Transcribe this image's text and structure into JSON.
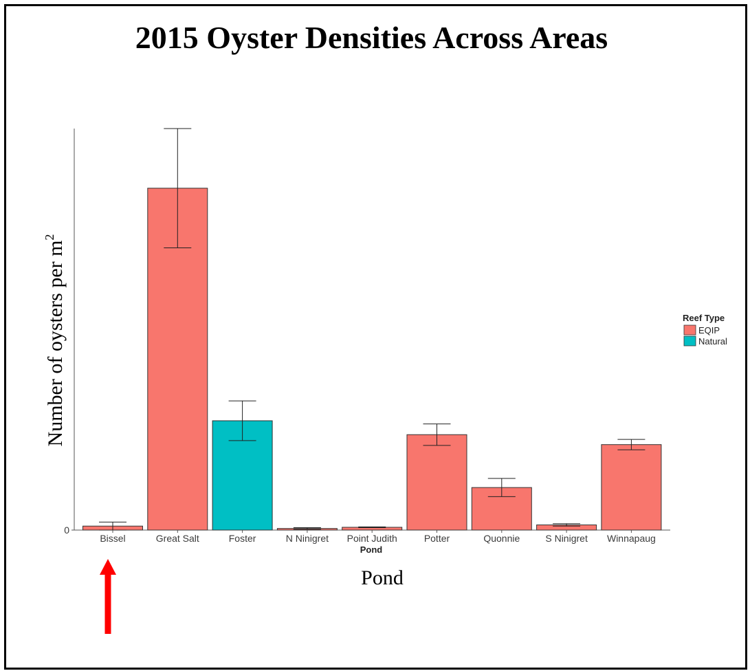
{
  "slide": {
    "title": "2015 Oyster Densities Across Areas"
  },
  "chart_data": {
    "type": "bar",
    "categories": [
      "Bissel",
      "Great Salt",
      "Foster",
      "N Ninigret",
      "Point Judith",
      "Potter",
      "Quonnie",
      "S Ninigret",
      "Winnapaug"
    ],
    "values": [
      1.0,
      86.0,
      27.5,
      0.4,
      0.7,
      24.0,
      10.7,
      1.3,
      21.5
    ],
    "error_low": [
      0.0,
      71.0,
      22.5,
      0.2,
      0.6,
      21.3,
      8.4,
      1.0,
      20.2
    ],
    "error_high": [
      2.0,
      101.0,
      32.5,
      0.6,
      0.8,
      26.7,
      13.0,
      1.6,
      22.8
    ],
    "reef_type": [
      "EQIP",
      "EQIP",
      "Natural",
      "EQIP",
      "EQIP",
      "EQIP",
      "EQIP",
      "EQIP",
      "EQIP"
    ],
    "series": [
      {
        "name": "EQIP",
        "color": "#f8766d"
      },
      {
        "name": "Natural",
        "color": "#00bfc4"
      }
    ],
    "legend_title": "Reef Type",
    "legend_position": "right",
    "ylabel_main": "Number of oysters per m",
    "ylabel_sup": "2",
    "xlabel_small": "Pond",
    "xlabel_large": "Pond",
    "y_ticks": [
      "0"
    ],
    "ylim": [
      0,
      101
    ],
    "grid": false
  },
  "annotation": {
    "arrow_color": "#ff0000",
    "arrow_target": "Bissel"
  }
}
